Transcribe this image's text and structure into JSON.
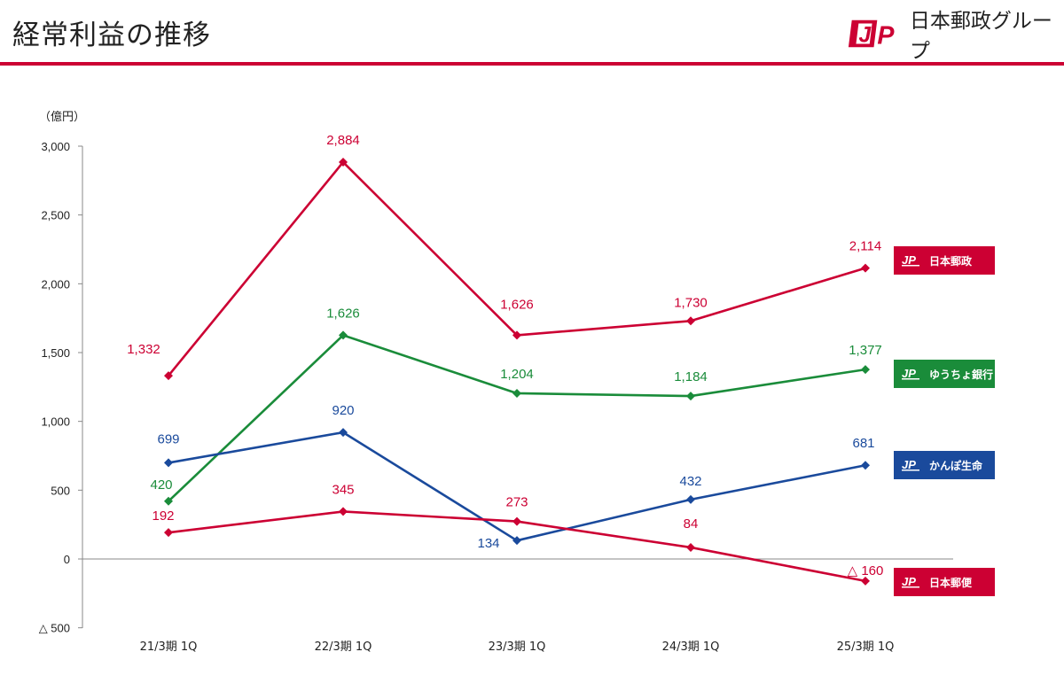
{
  "header": {
    "title": "経常利益の推移",
    "group_name": "日本郵政グループ",
    "accent_color": "#cc0033"
  },
  "chart_data": {
    "type": "line",
    "unit_label": "（億円）",
    "categories": [
      "21/3期 1Q",
      "22/3期 1Q",
      "23/3期 1Q",
      "24/3期 1Q",
      "25/3期 1Q"
    ],
    "ylim": [
      -500,
      3000
    ],
    "yticks": [
      {
        "value": 3000,
        "label": "3,000"
      },
      {
        "value": 2500,
        "label": "2,500"
      },
      {
        "value": 2000,
        "label": "2,000"
      },
      {
        "value": 1500,
        "label": "1,500"
      },
      {
        "value": 1000,
        "label": "1,000"
      },
      {
        "value": 500,
        "label": "500"
      },
      {
        "value": 0,
        "label": "0"
      },
      {
        "value": -500,
        "label": "△ 500"
      }
    ],
    "series": [
      {
        "name": "日本郵政",
        "color": "#cc0033",
        "icon": "jp-logo-icon",
        "values": [
          1332,
          2884,
          1626,
          1730,
          2114
        ],
        "labels": [
          "1,332",
          "2,884",
          "1,626",
          "1,730",
          "2,114"
        ]
      },
      {
        "name": "ゆうちょ銀行",
        "color": "#1a8c3a",
        "icon": "jp-logo-icon",
        "values": [
          420,
          1626,
          1204,
          1184,
          1377
        ],
        "labels": [
          "420",
          "1,626",
          "1,204",
          "1,184",
          "1,377"
        ]
      },
      {
        "name": "かんぽ生命",
        "color": "#1a4a9c",
        "icon": "jp-logo-icon",
        "values": [
          699,
          920,
          134,
          432,
          681
        ],
        "labels": [
          "699",
          "920",
          "134",
          "432",
          "681"
        ]
      },
      {
        "name": "日本郵便",
        "color": "#cc0033",
        "icon": "jp-logo-icon",
        "values": [
          192,
          345,
          273,
          84,
          -160
        ],
        "labels": [
          "192",
          "345",
          "273",
          "84",
          "△ 160"
        ]
      }
    ]
  }
}
